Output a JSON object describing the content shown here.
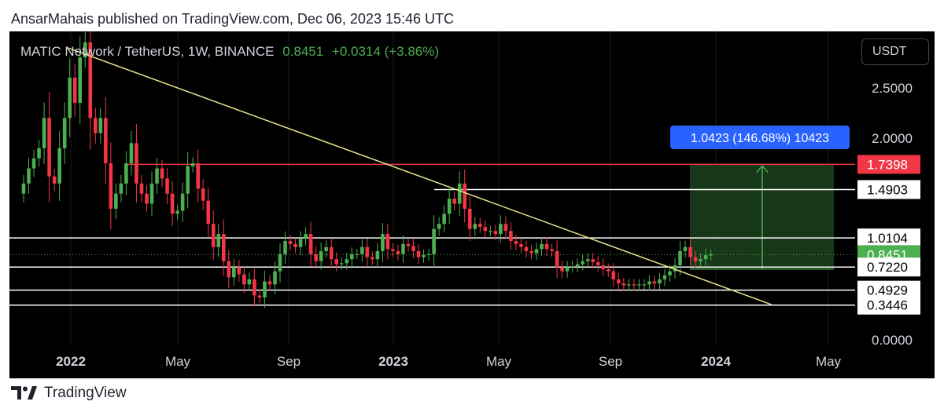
{
  "header": {
    "published": "AnsarMahais published on TradingView.com, Dec 06, 2023 15:46 UTC"
  },
  "symbol": {
    "name": "MATIC Network / TetherUS, 1W, BINANCE",
    "price": "0.8451",
    "change": "+0.0314 (+3.86%)"
  },
  "currency_button": "USDT",
  "footer": {
    "brand": "TradingView"
  },
  "colors": {
    "up": "#4caf50",
    "down": "#f23645",
    "trendline": "#e6e28a",
    "resistance": "#f23645",
    "level": "#ffffff",
    "measure_box": "#1b3d1b",
    "measure_label_bg": "#2962ff"
  },
  "chart_data": {
    "type": "candlestick",
    "timeframe": "1W",
    "x_tick_labels": [
      "2022",
      "May",
      "Sep",
      "2023",
      "May",
      "Sep",
      "2024",
      "May"
    ],
    "y_tick_labels": [
      "2.5000",
      "2.0000",
      "0.0000"
    ],
    "horizontal_levels": [
      {
        "value": 1.7398,
        "label": "1.7398",
        "color": "red"
      },
      {
        "value": 1.4903,
        "label": "1.4903",
        "color": "white"
      },
      {
        "value": 1.0104,
        "label": "1.0104",
        "color": "white"
      },
      {
        "value": 0.8451,
        "label": "0.8451",
        "color": "green",
        "current_price": true
      },
      {
        "value": 0.722,
        "label": "0.7220",
        "color": "white"
      },
      {
        "value": 0.4929,
        "label": "0.4929",
        "color": "white"
      },
      {
        "value": 0.3446,
        "label": "0.3446",
        "color": "white"
      }
    ],
    "trendline": {
      "from": {
        "date": "2021-12-27",
        "value": 2.9
      },
      "to": {
        "date": "2024-03-04",
        "value": 0.35
      }
    },
    "measure": {
      "label": "1.0423 (146.68%) 10423",
      "from_value": 0.7,
      "to_value": 1.7398
    },
    "closes": [
      1.55,
      1.7,
      1.8,
      1.9,
      2.2,
      1.62,
      1.55,
      1.9,
      2.2,
      2.6,
      2.35,
      2.8,
      2.95,
      2.2,
      2.05,
      2.2,
      1.75,
      1.3,
      1.45,
      1.55,
      1.75,
      1.95,
      1.55,
      1.45,
      1.35,
      1.55,
      1.7,
      1.6,
      1.45,
      1.25,
      1.28,
      1.45,
      1.72,
      1.75,
      1.5,
      1.38,
      1.15,
      0.92,
      1.05,
      0.78,
      0.62,
      0.72,
      0.65,
      0.55,
      0.6,
      0.44,
      0.42,
      0.58,
      0.55,
      0.68,
      0.85,
      0.98,
      0.95,
      0.92,
      1.0,
      1.05,
      0.85,
      0.78,
      0.88,
      0.92,
      0.8,
      0.75,
      0.76,
      0.8,
      0.85,
      0.85,
      0.92,
      0.82,
      0.8,
      0.88,
      1.05,
      0.9,
      0.88,
      0.85,
      0.95,
      0.93,
      0.88,
      0.82,
      0.84,
      0.85,
      1.1,
      1.15,
      1.25,
      1.4,
      1.35,
      1.55,
      1.3,
      1.1,
      1.15,
      1.12,
      1.08,
      1.08,
      1.05,
      1.15,
      1.08,
      0.98,
      0.95,
      0.92,
      0.88,
      0.86,
      0.9,
      0.95,
      0.9,
      0.88,
      0.72,
      0.68,
      0.72,
      0.73,
      0.75,
      0.78,
      0.8,
      0.77,
      0.74,
      0.7,
      0.68,
      0.6,
      0.56,
      0.54,
      0.55,
      0.54,
      0.55,
      0.55,
      0.58,
      0.56,
      0.6,
      0.64,
      0.68,
      0.74,
      0.88,
      0.92,
      0.82,
      0.78,
      0.8,
      0.84,
      0.8451
    ]
  }
}
